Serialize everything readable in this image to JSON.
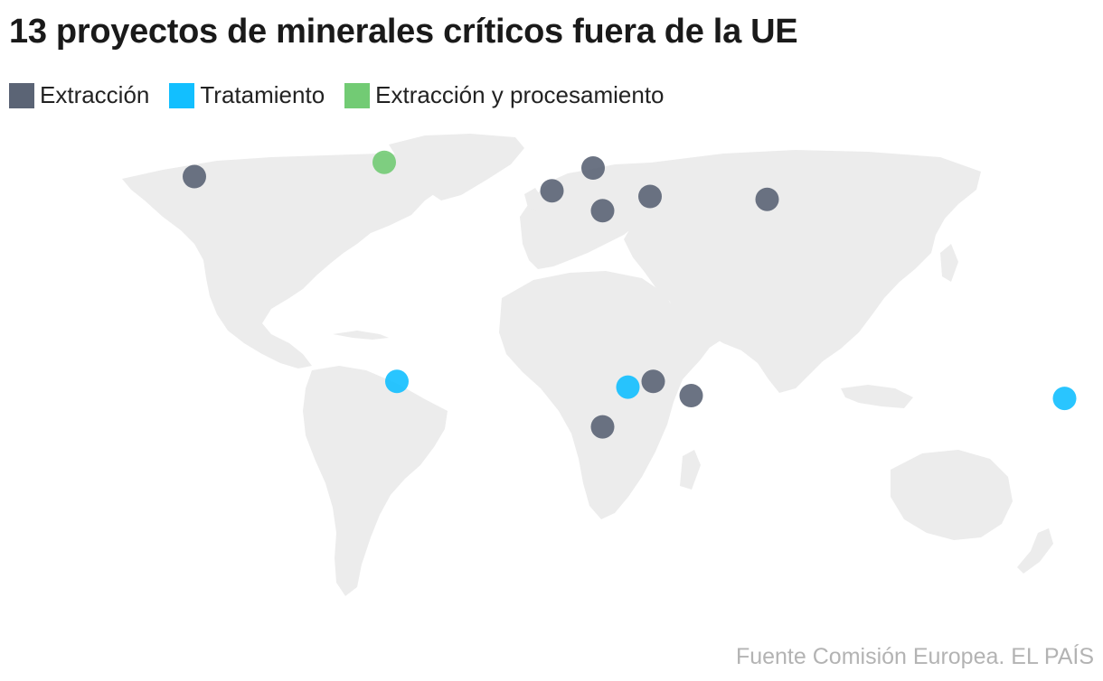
{
  "title": "13 proyectos de minerales críticos fuera de la UE",
  "legend": [
    {
      "key": "extraccion",
      "label": "Extracción",
      "color": "#5b6475"
    },
    {
      "key": "tratamiento",
      "label": "Tratamiento",
      "color": "#12bfff"
    },
    {
      "key": "ambos",
      "label": "Extracción y procesamiento",
      "color": "#72cb74"
    }
  ],
  "source": "Fuente Comisión Europea. EL PAÍS",
  "map": {
    "land_color": "#ececec",
    "projects": [
      {
        "type": "extraccion",
        "lon": -110,
        "lat": 57
      },
      {
        "type": "ambos",
        "lon": -50,
        "lat": 62
      },
      {
        "type": "extraccion",
        "lon": 3,
        "lat": 52
      },
      {
        "type": "extraccion",
        "lon": 16,
        "lat": 60
      },
      {
        "type": "extraccion",
        "lon": 19,
        "lat": 45
      },
      {
        "type": "extraccion",
        "lon": 34,
        "lat": 50
      },
      {
        "type": "extraccion",
        "lon": 71,
        "lat": 49
      },
      {
        "type": "tratamiento",
        "lon": -46,
        "lat": -15
      },
      {
        "type": "tratamiento",
        "lon": 27,
        "lat": -17
      },
      {
        "type": "extraccion",
        "lon": 35,
        "lat": -15
      },
      {
        "type": "extraccion",
        "lon": 47,
        "lat": -20
      },
      {
        "type": "extraccion",
        "lon": 19,
        "lat": -31
      },
      {
        "type": "tratamiento",
        "lon": 165,
        "lat": -21
      }
    ]
  }
}
